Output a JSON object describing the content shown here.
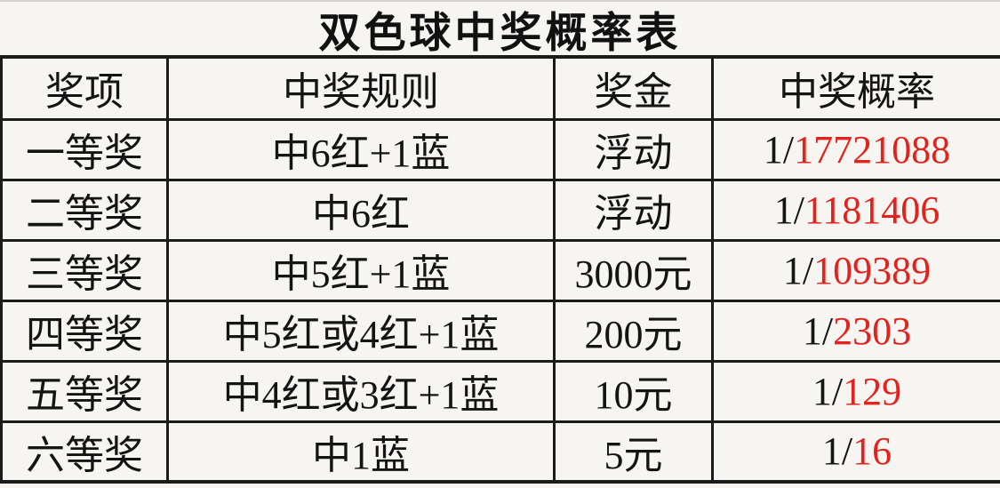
{
  "title": "双色球中奖概率表",
  "colors": {
    "probability_red": "#e2231d",
    "border_black": "#1b1b1b",
    "background": "#f6f5f2"
  },
  "table": {
    "headers": [
      "奖项",
      "中奖规则",
      "奖金",
      "中奖概率"
    ],
    "rows": [
      {
        "prize": "一等奖",
        "rule": "中6红+1蓝",
        "amount": "浮动",
        "prob_prefix": "1/",
        "prob_value": "17721088"
      },
      {
        "prize": "二等奖",
        "rule": "中6红",
        "amount": "浮动",
        "prob_prefix": "1/",
        "prob_value": "1181406"
      },
      {
        "prize": "三等奖",
        "rule": "中5红+1蓝",
        "amount": "3000元",
        "prob_prefix": "1/",
        "prob_value": "109389"
      },
      {
        "prize": "四等奖",
        "rule": "中5红或4红+1蓝",
        "amount": "200元",
        "prob_prefix": "1/",
        "prob_value": "2303"
      },
      {
        "prize": "五等奖",
        "rule": "中4红或3红+1蓝",
        "amount": "10元",
        "prob_prefix": "1/",
        "prob_value": "129"
      },
      {
        "prize": "六等奖",
        "rule": "中1蓝",
        "amount": "5元",
        "prob_prefix": "1/",
        "prob_value": "16"
      }
    ]
  }
}
